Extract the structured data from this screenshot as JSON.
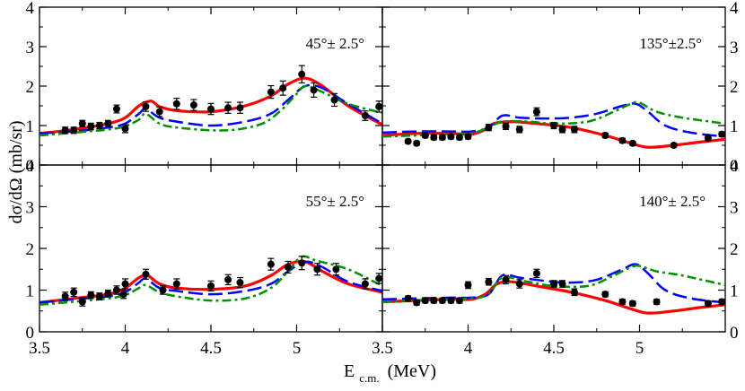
{
  "chart_data": {
    "type": "line",
    "ylabel": "dσ/dΩ (mb/sr)",
    "xlabel": "E",
    "xlabel_sub": "c.m.",
    "xlabel_unit": "(MeV)",
    "ylim": [
      0,
      4
    ],
    "y_ticks": [
      0,
      1,
      2,
      3,
      4
    ],
    "colors": {
      "red": "#ff0000",
      "blue": "#0000ff",
      "green": "#009000",
      "points": "#000000"
    },
    "panels": [
      {
        "id": "p45",
        "angle": "45°± 2.5°",
        "xlim": [
          3.5,
          5.5
        ],
        "x_ticks": [
          3.5,
          4,
          4.5,
          5
        ],
        "x_tick_labels": [
          "",
          "",
          "",
          ""
        ],
        "points": [
          [
            3.65,
            0.88,
            0.08
          ],
          [
            3.7,
            0.88,
            0.08
          ],
          [
            3.75,
            1.05,
            0.08
          ],
          [
            3.8,
            0.98,
            0.08
          ],
          [
            3.85,
            1.0,
            0.08
          ],
          [
            3.9,
            1.05,
            0.08
          ],
          [
            3.95,
            1.42,
            0.1
          ],
          [
            4.0,
            0.92,
            0.1
          ],
          [
            4.12,
            1.48,
            0.12
          ],
          [
            4.2,
            1.35,
            0.12
          ],
          [
            4.3,
            1.55,
            0.14
          ],
          [
            4.4,
            1.52,
            0.14
          ],
          [
            4.5,
            1.42,
            0.14
          ],
          [
            4.6,
            1.45,
            0.14
          ],
          [
            4.67,
            1.45,
            0.14
          ],
          [
            4.85,
            1.85,
            0.16
          ],
          [
            4.92,
            1.95,
            0.18
          ],
          [
            5.03,
            2.3,
            0.22
          ],
          [
            5.1,
            1.9,
            0.18
          ],
          [
            5.22,
            1.65,
            0.16
          ],
          [
            5.4,
            1.25,
            0.12
          ],
          [
            5.48,
            1.48,
            0.14
          ]
        ],
        "curves": [
          {
            "name": "red",
            "x": [
              3.5,
              3.7,
              3.9,
              4.0,
              4.08,
              4.15,
              4.2,
              4.3,
              4.5,
              4.7,
              4.85,
              4.95,
              5.05,
              5.15,
              5.3,
              5.5
            ],
            "y": [
              0.8,
              0.9,
              1.05,
              1.2,
              1.5,
              1.62,
              1.48,
              1.38,
              1.35,
              1.5,
              1.75,
              2.05,
              2.2,
              2.0,
              1.5,
              1.02
            ]
          },
          {
            "name": "blue",
            "x": [
              3.5,
              3.7,
              3.9,
              4.0,
              4.08,
              4.12,
              4.2,
              4.3,
              4.5,
              4.7,
              4.85,
              4.95,
              5.05,
              5.15,
              5.3,
              5.5
            ],
            "y": [
              0.8,
              0.85,
              0.95,
              1.05,
              1.3,
              1.42,
              1.2,
              1.1,
              1.0,
              1.1,
              1.3,
              1.65,
              2.0,
              1.95,
              1.55,
              1.05
            ]
          },
          {
            "name": "green",
            "x": [
              3.5,
              3.7,
              3.9,
              4.0,
              4.08,
              4.12,
              4.2,
              4.3,
              4.5,
              4.65,
              4.8,
              4.9,
              5.0,
              5.05,
              5.15,
              5.3,
              5.5
            ],
            "y": [
              0.75,
              0.82,
              0.9,
              0.98,
              1.15,
              1.3,
              1.05,
              0.95,
              0.88,
              0.9,
              1.05,
              1.35,
              1.8,
              2.0,
              1.85,
              1.55,
              1.32
            ]
          }
        ]
      },
      {
        "id": "p135",
        "angle": "135°±2.5°",
        "xlim": [
          3.5,
          5.5
        ],
        "x_ticks": [
          3.5,
          4,
          4.5,
          5
        ],
        "x_tick_labels": [
          "",
          "",
          "",
          ""
        ],
        "points": [
          [
            3.65,
            0.6,
            0.05
          ],
          [
            3.7,
            0.55,
            0.05
          ],
          [
            3.75,
            0.75,
            0.06
          ],
          [
            3.8,
            0.7,
            0.06
          ],
          [
            3.85,
            0.7,
            0.06
          ],
          [
            3.9,
            0.72,
            0.06
          ],
          [
            3.95,
            0.7,
            0.06
          ],
          [
            4.0,
            0.72,
            0.06
          ],
          [
            4.12,
            0.95,
            0.08
          ],
          [
            4.22,
            0.98,
            0.08
          ],
          [
            4.3,
            0.9,
            0.08
          ],
          [
            4.4,
            1.35,
            0.1
          ],
          [
            4.5,
            1.0,
            0.08
          ],
          [
            4.55,
            0.9,
            0.08
          ],
          [
            4.62,
            0.9,
            0.08
          ],
          [
            4.8,
            0.75,
            0.06
          ],
          [
            4.9,
            0.62,
            0.06
          ],
          [
            4.96,
            0.55,
            0.05
          ],
          [
            5.2,
            0.5,
            0.05
          ],
          [
            5.4,
            0.68,
            0.06
          ],
          [
            5.48,
            0.78,
            0.06
          ]
        ],
        "curves": [
          {
            "name": "red",
            "x": [
              3.5,
              3.7,
              3.9,
              4.02,
              4.1,
              4.15,
              4.25,
              4.4,
              4.6,
              4.8,
              4.95,
              5.05,
              5.2,
              5.35,
              5.5
            ],
            "y": [
              0.75,
              0.8,
              0.8,
              0.78,
              0.9,
              1.05,
              1.1,
              1.05,
              0.95,
              0.75,
              0.55,
              0.45,
              0.5,
              0.58,
              0.65
            ]
          },
          {
            "name": "blue",
            "x": [
              3.5,
              3.7,
              3.9,
              4.02,
              4.12,
              4.2,
              4.3,
              4.45,
              4.6,
              4.75,
              4.9,
              4.98,
              5.05,
              5.15,
              5.3,
              5.5
            ],
            "y": [
              0.82,
              0.85,
              0.85,
              0.85,
              0.95,
              1.25,
              1.2,
              1.18,
              1.2,
              1.3,
              1.5,
              1.55,
              1.35,
              1.0,
              0.82,
              0.72
            ]
          },
          {
            "name": "green",
            "x": [
              3.5,
              3.7,
              3.9,
              4.02,
              4.12,
              4.2,
              4.35,
              4.5,
              4.7,
              4.85,
              4.95,
              5.0,
              5.1,
              5.25,
              5.5
            ],
            "y": [
              0.72,
              0.75,
              0.78,
              0.8,
              0.95,
              1.1,
              1.1,
              1.05,
              1.1,
              1.35,
              1.55,
              1.58,
              1.35,
              1.2,
              1.05
            ]
          }
        ]
      },
      {
        "id": "p55",
        "angle": "55°± 2.5°",
        "xlim": [
          3.5,
          5.5
        ],
        "x_ticks": [
          3.5,
          4,
          4.5,
          5
        ],
        "x_tick_labels": [
          "3.5",
          "4",
          "4.5",
          "5"
        ],
        "points": [
          [
            3.65,
            0.85,
            0.1
          ],
          [
            3.7,
            0.95,
            0.1
          ],
          [
            3.75,
            0.72,
            0.1
          ],
          [
            3.8,
            0.88,
            0.08
          ],
          [
            3.85,
            0.85,
            0.08
          ],
          [
            3.9,
            0.92,
            0.08
          ],
          [
            3.95,
            1.0,
            0.1
          ],
          [
            3.99,
            0.9,
            0.1
          ],
          [
            4.0,
            1.15,
            0.12
          ],
          [
            4.12,
            1.38,
            0.12
          ],
          [
            4.22,
            1.0,
            0.1
          ],
          [
            4.3,
            1.15,
            0.12
          ],
          [
            4.5,
            1.1,
            0.12
          ],
          [
            4.6,
            1.25,
            0.12
          ],
          [
            4.67,
            1.18,
            0.12
          ],
          [
            4.85,
            1.62,
            0.14
          ],
          [
            4.95,
            1.55,
            0.14
          ],
          [
            5.03,
            1.65,
            0.16
          ],
          [
            5.12,
            1.5,
            0.14
          ],
          [
            5.23,
            1.5,
            0.14
          ],
          [
            5.4,
            1.15,
            0.12
          ],
          [
            5.48,
            1.28,
            0.12
          ]
        ],
        "curves": [
          {
            "name": "red",
            "x": [
              3.5,
              3.7,
              3.9,
              4.0,
              4.08,
              4.13,
              4.2,
              4.3,
              4.5,
              4.7,
              4.85,
              4.95,
              5.05,
              5.15,
              5.3,
              5.5
            ],
            "y": [
              0.7,
              0.8,
              0.9,
              1.05,
              1.3,
              1.35,
              1.15,
              1.05,
              1.02,
              1.1,
              1.35,
              1.62,
              1.68,
              1.45,
              1.15,
              0.95
            ]
          },
          {
            "name": "blue",
            "x": [
              3.5,
              3.7,
              3.9,
              4.0,
              4.08,
              4.12,
              4.2,
              4.3,
              4.5,
              4.7,
              4.85,
              4.95,
              5.05,
              5.15,
              5.3,
              5.5
            ],
            "y": [
              0.7,
              0.78,
              0.85,
              0.95,
              1.18,
              1.28,
              1.05,
              0.98,
              0.9,
              0.98,
              1.15,
              1.45,
              1.68,
              1.55,
              1.2,
              0.98
            ]
          },
          {
            "name": "green",
            "x": [
              3.5,
              3.7,
              3.9,
              4.0,
              4.08,
              4.12,
              4.2,
              4.3,
              4.5,
              4.7,
              4.85,
              4.95,
              5.03,
              5.12,
              5.3,
              5.5
            ],
            "y": [
              0.65,
              0.72,
              0.8,
              0.88,
              1.05,
              1.12,
              0.95,
              0.85,
              0.75,
              0.8,
              1.05,
              1.45,
              1.8,
              1.7,
              1.5,
              1.1
            ]
          }
        ]
      },
      {
        "id": "p140",
        "angle": "140°± 2.5°",
        "xlim": [
          3.5,
          5.5
        ],
        "x_ticks": [
          3.5,
          4,
          4.5,
          5
        ],
        "x_tick_labels": [
          "3.5",
          "4",
          "4.5",
          "5"
        ],
        "points": [
          [
            3.65,
            0.8,
            0.06
          ],
          [
            3.7,
            0.7,
            0.06
          ],
          [
            3.75,
            0.75,
            0.06
          ],
          [
            3.8,
            0.75,
            0.06
          ],
          [
            3.85,
            0.75,
            0.06
          ],
          [
            3.9,
            0.75,
            0.06
          ],
          [
            3.95,
            0.75,
            0.06
          ],
          [
            4.0,
            1.12,
            0.08
          ],
          [
            4.12,
            1.2,
            0.08
          ],
          [
            4.22,
            1.25,
            0.1
          ],
          [
            4.3,
            1.15,
            0.1
          ],
          [
            4.4,
            1.4,
            0.1
          ],
          [
            4.5,
            1.15,
            0.08
          ],
          [
            4.55,
            1.15,
            0.08
          ],
          [
            4.62,
            0.95,
            0.08
          ],
          [
            4.8,
            0.9,
            0.06
          ],
          [
            4.9,
            0.72,
            0.06
          ],
          [
            4.96,
            0.68,
            0.06
          ],
          [
            5.1,
            0.72,
            0.06
          ],
          [
            5.4,
            0.68,
            0.06
          ],
          [
            5.48,
            0.72,
            0.06
          ]
        ],
        "curves": [
          {
            "name": "red",
            "x": [
              3.5,
              3.7,
              3.9,
              4.02,
              4.1,
              4.17,
              4.25,
              4.4,
              4.6,
              4.8,
              4.95,
              5.05,
              5.2,
              5.35,
              5.5
            ],
            "y": [
              0.72,
              0.75,
              0.78,
              0.78,
              0.9,
              1.15,
              1.2,
              1.1,
              0.95,
              0.75,
              0.55,
              0.45,
              0.5,
              0.58,
              0.65
            ]
          },
          {
            "name": "blue",
            "x": [
              3.5,
              3.7,
              3.9,
              4.02,
              4.12,
              4.2,
              4.3,
              4.45,
              4.6,
              4.75,
              4.9,
              4.98,
              5.05,
              5.15,
              5.3,
              5.5
            ],
            "y": [
              0.78,
              0.8,
              0.82,
              0.82,
              0.9,
              1.35,
              1.3,
              1.22,
              1.18,
              1.25,
              1.5,
              1.62,
              1.4,
              1.0,
              0.8,
              0.7
            ]
          },
          {
            "name": "green",
            "x": [
              3.5,
              3.7,
              3.9,
              4.02,
              4.12,
              4.2,
              4.35,
              4.5,
              4.7,
              4.85,
              4.95,
              5.0,
              5.1,
              5.25,
              5.5
            ],
            "y": [
              0.72,
              0.75,
              0.78,
              0.8,
              0.9,
              1.3,
              1.2,
              1.1,
              1.1,
              1.35,
              1.55,
              1.58,
              1.45,
              1.35,
              1.12
            ]
          }
        ]
      }
    ]
  }
}
